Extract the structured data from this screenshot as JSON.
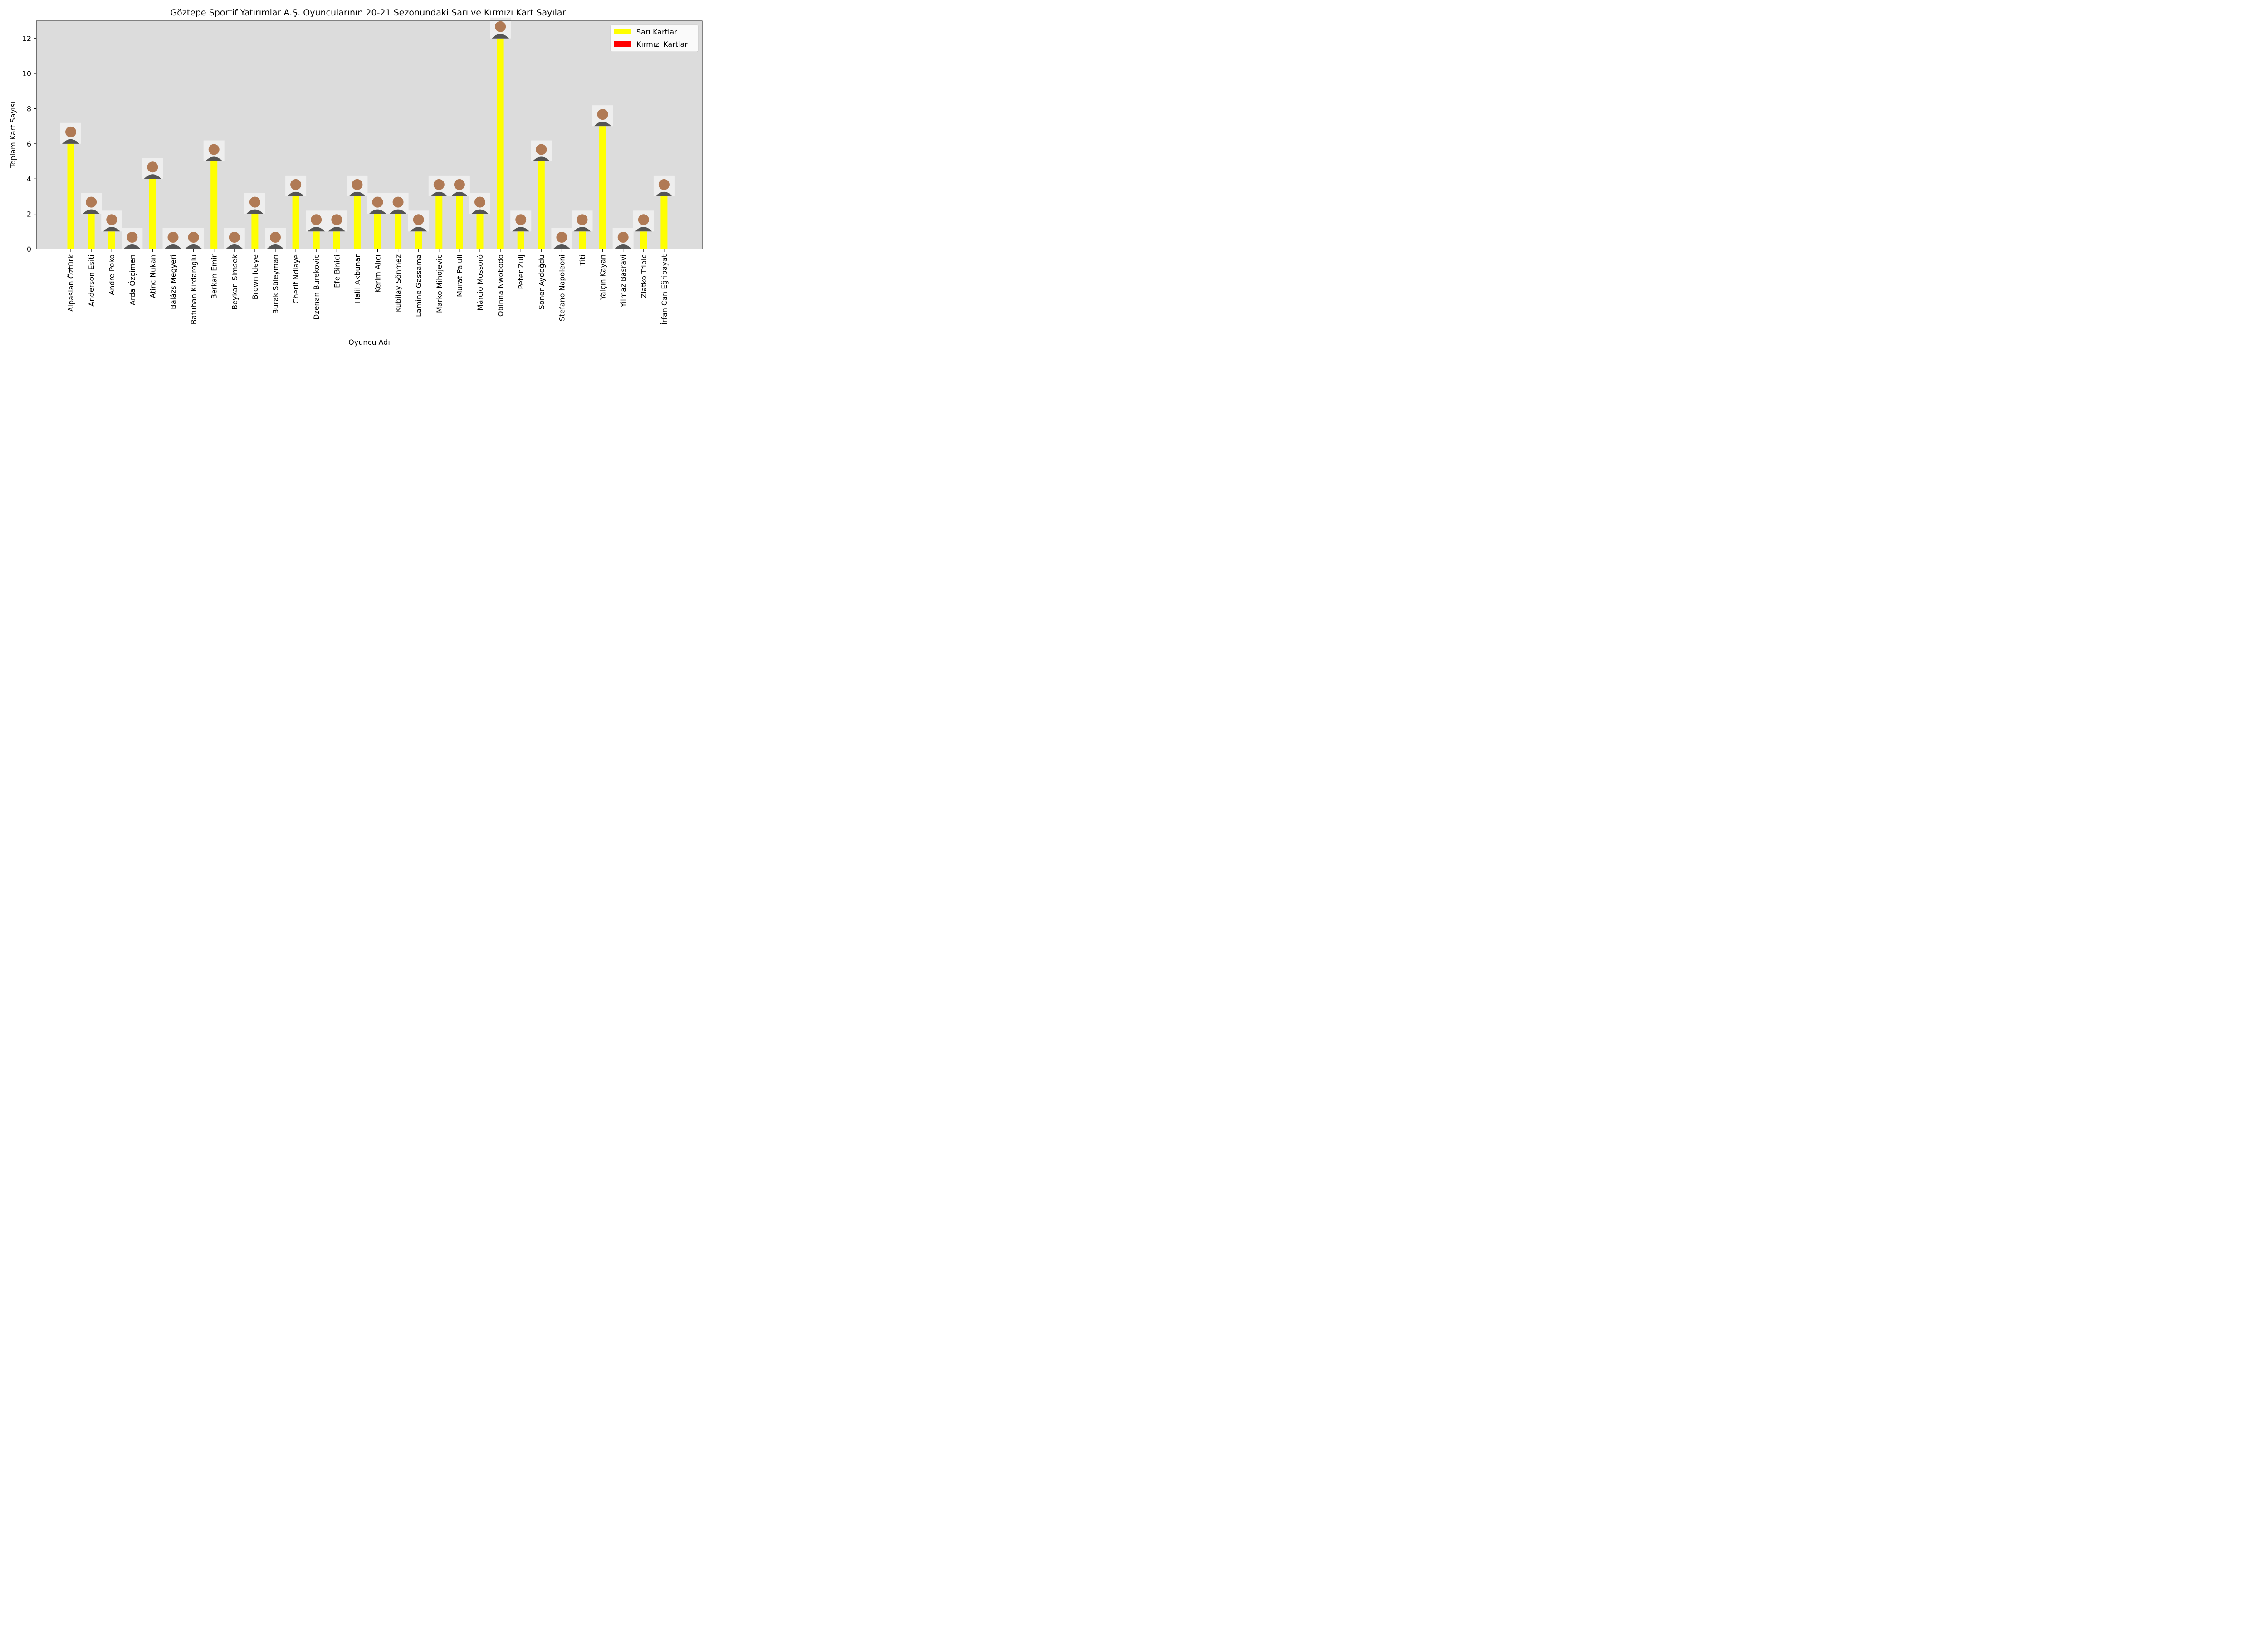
{
  "chart_data": {
    "type": "bar",
    "title": "Göztepe Sportif Yatırımlar A.Ş. Oyuncularının 20-21 Sezonundaki Sarı ve Kırmızı Kart Sayıları",
    "xlabel": "Oyuncu Adı",
    "ylabel": "Toplam Kart Sayısı",
    "ylim": [
      0,
      13
    ],
    "yticks": [
      0,
      2,
      4,
      6,
      8,
      10,
      12
    ],
    "grid": false,
    "legend_position": "top-right",
    "plot_background": "#dcdcdc",
    "categories": [
      "Alpaslan Öztürk",
      "Anderson Esiti",
      "Andre Poko",
      "Arda Özçimen",
      "Atinc Nukan",
      "Balázs Megyeri",
      "Batuhan Kirdaroglu",
      "Berkan Emir",
      "Beykan Simsek",
      "Brown Ideye",
      "Burak Süleyman",
      "Cherif Ndiaye",
      "Dzenan Burekovic",
      "Efe Binici",
      "Halil Akbunar",
      "Kerim Alıcı",
      "Kubilay Sönmez",
      "Lamine Gassama",
      "Marko Mihojevic",
      "Murat Paluli",
      "Márcio Mossoró",
      "Obinna Nwobodo",
      "Peter Zulj",
      "Soner Aydoğdu",
      "Stefano Napoleoni",
      "Titi",
      "Yalçın Kayan",
      "Yilmaz Basravi",
      "Zlatko Tripic",
      "İrfan Can Eğribayat"
    ],
    "series": [
      {
        "name": "Sarı Kartlar",
        "color": "#ffff00",
        "values": [
          6,
          2,
          1,
          0,
          4,
          0,
          0,
          5,
          0,
          2,
          0,
          3,
          1,
          1,
          3,
          2,
          2,
          1,
          3,
          3,
          2,
          12,
          1,
          5,
          0,
          1,
          7,
          0,
          1,
          3
        ]
      },
      {
        "name": "Kırmızı Kartlar",
        "color": "#ff0000",
        "values": [
          0,
          0,
          0,
          0,
          0,
          0,
          0,
          0,
          0,
          0,
          0,
          0,
          0,
          0,
          0,
          0,
          0,
          0,
          0,
          0,
          0,
          0,
          0,
          0,
          0,
          0,
          0,
          0,
          0,
          0
        ]
      }
    ],
    "icon": "player-photo-icon"
  }
}
